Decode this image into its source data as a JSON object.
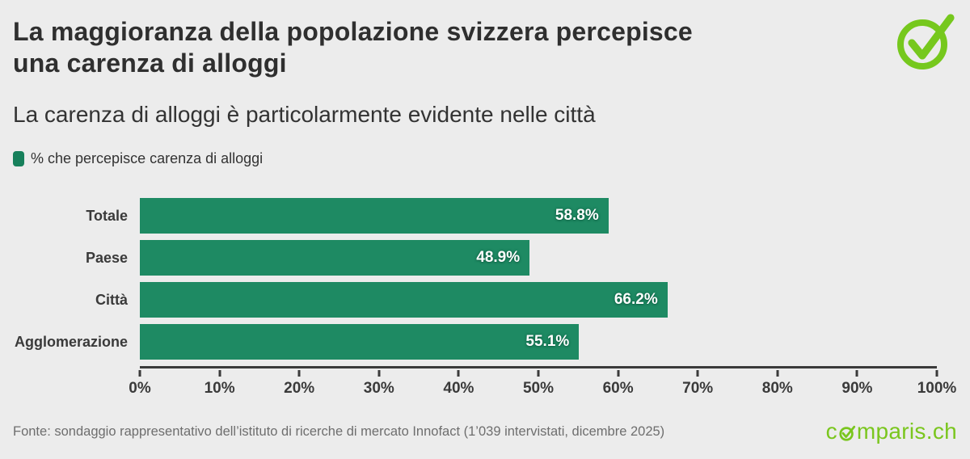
{
  "page": {
    "background_color": "#ececec"
  },
  "header": {
    "title_line1": "La maggioranza della popolazione svizzera percepisce",
    "title_line2": "una carenza di alloggi",
    "subtitle": "La carenza di alloggi è particolarmente evidente nelle città"
  },
  "legend": {
    "label": "% che percepisce carenza di alloggi",
    "marker_color": "#17805b"
  },
  "chart_data": {
    "type": "bar",
    "orientation": "horizontal",
    "title": "La maggioranza della popolazione svizzera percepisce una carenza di alloggi",
    "subtitle": "La carenza di alloggi è particolarmente evidente nelle città",
    "series_name": "% che percepisce carenza di alloggi",
    "categories": [
      "Totale",
      "Paese",
      "Città",
      "Agglomerazione"
    ],
    "values": [
      58.8,
      48.9,
      66.2,
      55.1
    ],
    "value_labels": [
      "58.8%",
      "48.9%",
      "66.2%",
      "55.1%"
    ],
    "xlim": [
      0,
      100
    ],
    "x_ticks": [
      "0%",
      "10%",
      "20%",
      "30%",
      "40%",
      "50%",
      "60%",
      "70%",
      "80%",
      "90%",
      "100%"
    ],
    "bar_color": "#1e8a63",
    "grid": false,
    "legend_position": "top-left"
  },
  "footer": {
    "source": "Fonte: sondaggio rappresentativo dell’istituto di ricerche di mercato Innofact (1’039 intervistati, dicembre 2025)",
    "logo_prefix": "c",
    "logo_suffix": "mparis.ch",
    "logo_text": "comparis.ch",
    "logo_color": "#7ac61e",
    "check_icon_color": "#76c81d"
  }
}
